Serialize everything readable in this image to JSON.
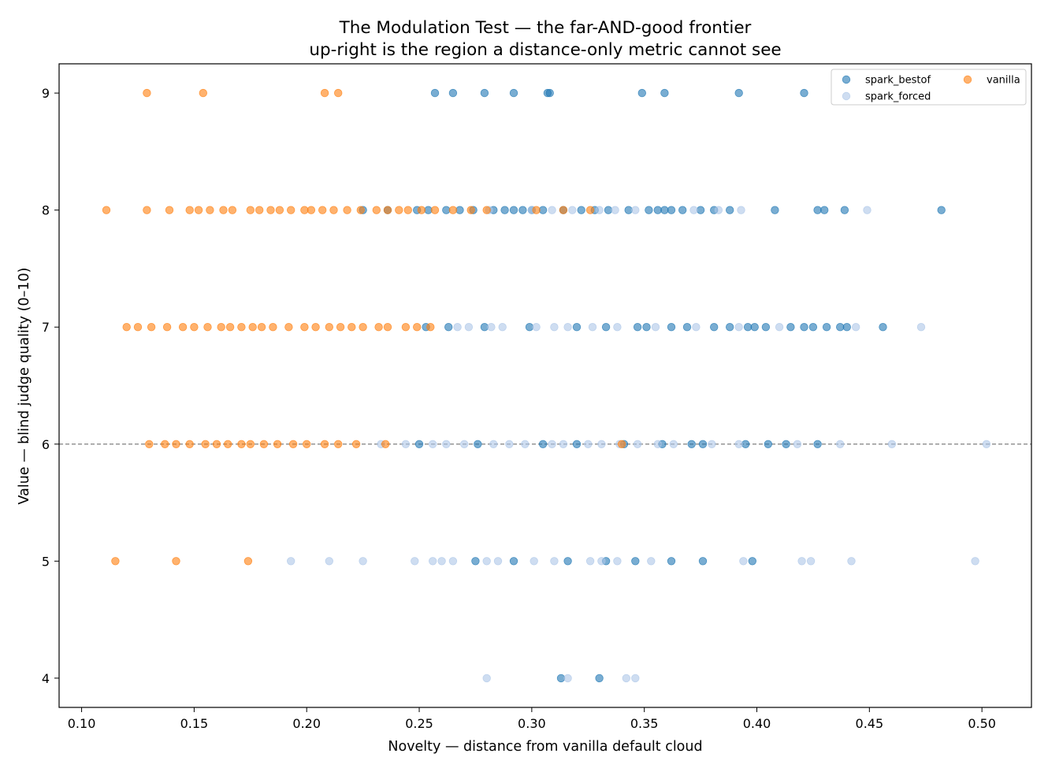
{
  "chart_data": {
    "type": "scatter",
    "title": "The Modulation Test — the far-AND-good frontier",
    "subtitle": "up-right is the region a distance-only metric cannot see",
    "xlabel": "Novelty — distance from vanilla default cloud",
    "ylabel": "Value — blind judge quality (0–10)",
    "xlim": [
      0.09,
      0.522
    ],
    "ylim": [
      3.75,
      9.25
    ],
    "xticks": [
      "0.10",
      "0.15",
      "0.20",
      "0.25",
      "0.30",
      "0.35",
      "0.40",
      "0.45",
      "0.50"
    ],
    "yticks": [
      "4",
      "5",
      "6",
      "7",
      "8",
      "9"
    ],
    "grid": false,
    "legend_position": "top-right",
    "reference_line": {
      "y": 6,
      "style": "dashed",
      "color": "#808080"
    },
    "series": [
      {
        "name": "spark_bestof",
        "color": "#1f77b4",
        "opacity": 0.6,
        "points": [
          {
            "y": 9,
            "x": [
              0.257,
              0.265,
              0.279,
              0.292,
              0.307,
              0.308,
              0.349,
              0.359,
              0.392,
              0.421
            ]
          },
          {
            "y": 8,
            "x": [
              0.225,
              0.236,
              0.249,
              0.254,
              0.262,
              0.268,
              0.274,
              0.283,
              0.288,
              0.292,
              0.296,
              0.3,
              0.305,
              0.314,
              0.322,
              0.328,
              0.334,
              0.343,
              0.352,
              0.356,
              0.359,
              0.362,
              0.367,
              0.375,
              0.381,
              0.388,
              0.408,
              0.427,
              0.43,
              0.439,
              0.482
            ]
          },
          {
            "y": 7,
            "x": [
              0.253,
              0.263,
              0.279,
              0.299,
              0.32,
              0.333,
              0.347,
              0.351,
              0.362,
              0.369,
              0.381,
              0.388,
              0.396,
              0.399,
              0.404,
              0.415,
              0.421,
              0.425,
              0.431,
              0.437,
              0.44,
              0.456
            ]
          },
          {
            "y": 6,
            "x": [
              0.25,
              0.276,
              0.305,
              0.32,
              0.341,
              0.358,
              0.371,
              0.376,
              0.395,
              0.405,
              0.413,
              0.427
            ]
          },
          {
            "y": 5,
            "x": [
              0.275,
              0.292,
              0.316,
              0.333,
              0.346,
              0.362,
              0.376,
              0.398
            ]
          },
          {
            "y": 4,
            "x": [
              0.313,
              0.33
            ]
          }
        ]
      },
      {
        "name": "spark_forced",
        "color": "#aec7e8",
        "opacity": 0.6,
        "points": [
          {
            "y": 8,
            "x": [
              0.281,
              0.3,
              0.309,
              0.318,
              0.33,
              0.337,
              0.346,
              0.372,
              0.383,
              0.393,
              0.449
            ]
          },
          {
            "y": 7,
            "x": [
              0.267,
              0.272,
              0.282,
              0.287,
              0.302,
              0.31,
              0.316,
              0.327,
              0.338,
              0.355,
              0.373,
              0.392,
              0.41,
              0.444,
              0.473
            ]
          },
          {
            "y": 6,
            "x": [
              0.233,
              0.244,
              0.256,
              0.262,
              0.27,
              0.283,
              0.29,
              0.297,
              0.309,
              0.314,
              0.325,
              0.331,
              0.339,
              0.347,
              0.356,
              0.363,
              0.38,
              0.392,
              0.418,
              0.437,
              0.46,
              0.502
            ]
          },
          {
            "y": 5,
            "x": [
              0.193,
              0.21,
              0.225,
              0.248,
              0.256,
              0.26,
              0.265,
              0.28,
              0.285,
              0.301,
              0.31,
              0.326,
              0.331,
              0.338,
              0.353,
              0.394,
              0.42,
              0.424,
              0.442,
              0.497
            ]
          },
          {
            "y": 4,
            "x": [
              0.28,
              0.316,
              0.342,
              0.346
            ]
          }
        ]
      },
      {
        "name": "vanilla",
        "color": "#ff7f0e",
        "opacity": 0.6,
        "points": [
          {
            "y": 9,
            "x": [
              0.129,
              0.154,
              0.208,
              0.214
            ]
          },
          {
            "y": 8,
            "x": [
              0.111,
              0.129,
              0.139,
              0.148,
              0.152,
              0.157,
              0.163,
              0.167,
              0.175,
              0.179,
              0.184,
              0.188,
              0.193,
              0.199,
              0.202,
              0.207,
              0.212,
              0.218,
              0.224,
              0.231,
              0.236,
              0.241,
              0.245,
              0.251,
              0.257,
              0.265,
              0.273,
              0.28,
              0.302,
              0.314,
              0.326
            ]
          },
          {
            "y": 7,
            "x": [
              0.12,
              0.125,
              0.131,
              0.138,
              0.145,
              0.15,
              0.156,
              0.162,
              0.166,
              0.171,
              0.176,
              0.18,
              0.185,
              0.192,
              0.199,
              0.204,
              0.21,
              0.215,
              0.22,
              0.225,
              0.232,
              0.236,
              0.244,
              0.249,
              0.255
            ]
          },
          {
            "y": 6,
            "x": [
              0.13,
              0.137,
              0.142,
              0.148,
              0.155,
              0.16,
              0.165,
              0.171,
              0.175,
              0.181,
              0.187,
              0.194,
              0.2,
              0.208,
              0.214,
              0.222,
              0.235,
              0.34
            ]
          },
          {
            "y": 5,
            "x": [
              0.115,
              0.142,
              0.174
            ]
          }
        ]
      }
    ]
  }
}
